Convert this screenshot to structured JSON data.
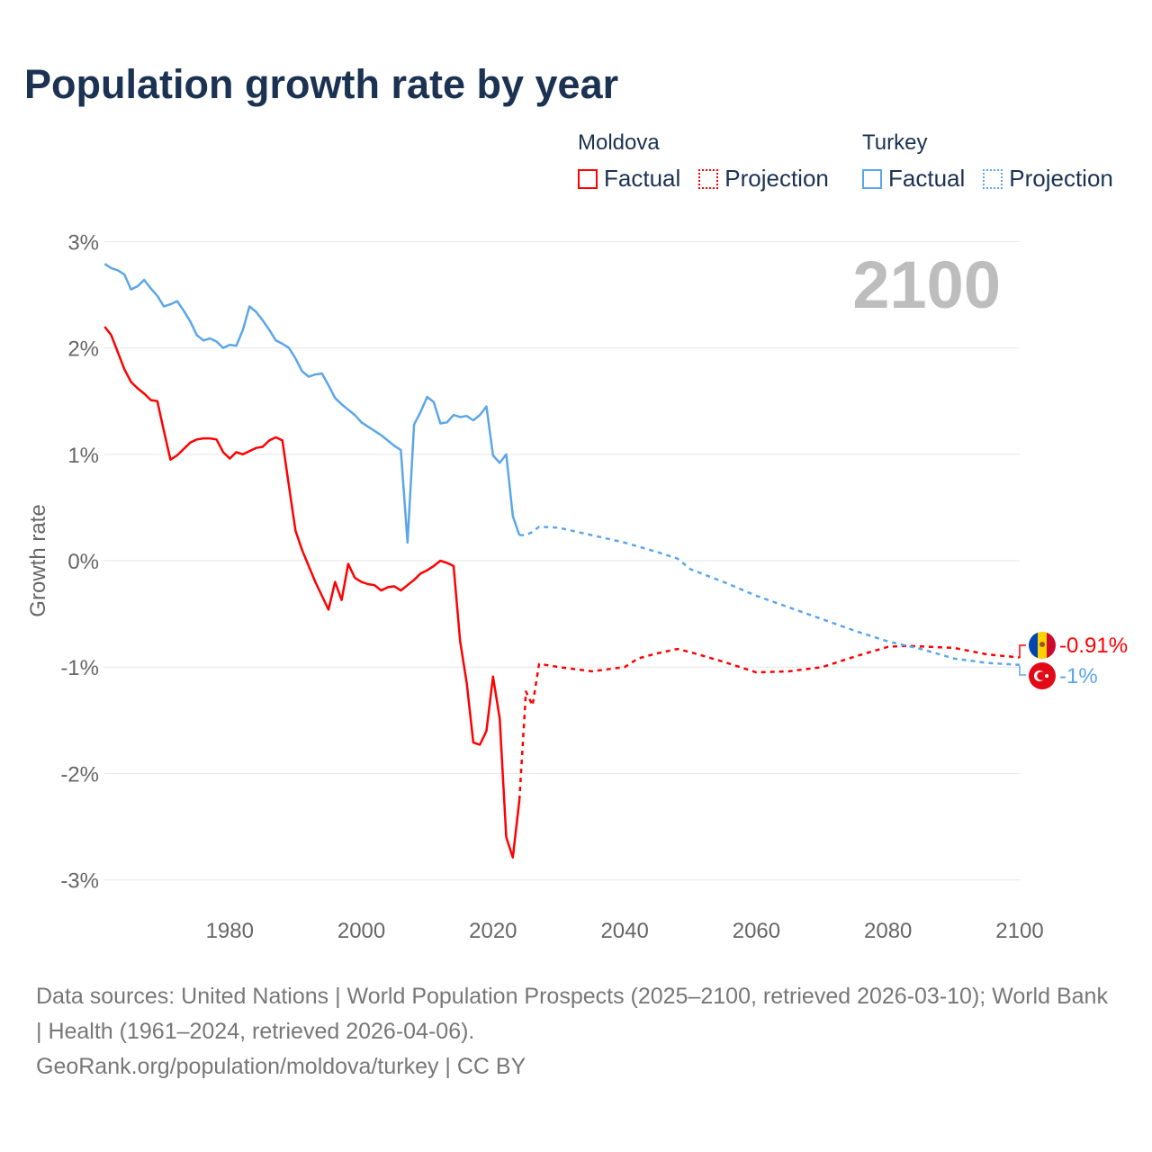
{
  "title": "Population growth rate by year",
  "legend": {
    "groups": [
      {
        "country": "Moldova",
        "factual": "Factual",
        "projection": "Projection",
        "color": "#ff0000"
      },
      {
        "country": "Turkey",
        "factual": "Factual",
        "projection": "Projection",
        "color": "#5ba6e9"
      }
    ]
  },
  "year_label": "2100",
  "end_labels": {
    "moldova": "-0.91%",
    "turkey": "-1%",
    "moldova_flag": "moldova-flag-icon",
    "turkey_flag": "turkey-flag-icon"
  },
  "footer": {
    "line1": "Data sources: United Nations | World Population Prospects (2025–2100, retrieved 2026-03-10); World Bank | Health (1961–2024, retrieved 2026-04-06).",
    "line2": "GeoRank.org/population/moldova/turkey | CC BY"
  },
  "chart_data": {
    "type": "line",
    "title": "Population growth rate by year",
    "xlabel": "",
    "ylabel": "Growth rate",
    "xlim": [
      1961,
      2100
    ],
    "ylim": [
      -3.3,
      3.1
    ],
    "x_ticks": [
      1980,
      2000,
      2020,
      2040,
      2060,
      2080,
      2100
    ],
    "y_ticks": [
      {
        "v": 3,
        "label": "3%"
      },
      {
        "v": 2,
        "label": "2%"
      },
      {
        "v": 1,
        "label": "1%"
      },
      {
        "v": 0,
        "label": "0%"
      },
      {
        "v": -1,
        "label": "-1%"
      },
      {
        "v": -2,
        "label": "-2%"
      },
      {
        "v": -3,
        "label": "-3%"
      }
    ],
    "grid": true,
    "legend_position": "top-right",
    "series": [
      {
        "name": "Moldova",
        "kind": "Factual",
        "color": "#ff0000",
        "x": [
          1961,
          1962,
          1963,
          1964,
          1965,
          1966,
          1967,
          1968,
          1969,
          1970,
          1971,
          1972,
          1973,
          1974,
          1975,
          1976,
          1977,
          1978,
          1979,
          1980,
          1981,
          1982,
          1983,
          1984,
          1985,
          1986,
          1987,
          1988,
          1989,
          1990,
          1991,
          1992,
          1993,
          1994,
          1995,
          1996,
          1997,
          1998,
          1999,
          2000,
          2001,
          2002,
          2003,
          2004,
          2005,
          2006,
          2007,
          2008,
          2009,
          2010,
          2011,
          2012,
          2013,
          2014,
          2015,
          2016,
          2017,
          2018,
          2019,
          2020,
          2021,
          2022,
          2023,
          2024
        ],
        "y": [
          2.2,
          2.12,
          1.96,
          1.8,
          1.68,
          1.62,
          1.57,
          1.51,
          1.5,
          1.22,
          0.95,
          0.99,
          1.05,
          1.11,
          1.14,
          1.15,
          1.15,
          1.14,
          1.02,
          0.96,
          1.02,
          1.0,
          1.03,
          1.06,
          1.07,
          1.13,
          1.16,
          1.13,
          0.7,
          0.28,
          0.1,
          -0.05,
          -0.2,
          -0.33,
          -0.46,
          -0.2,
          -0.37,
          -0.03,
          -0.16,
          -0.2,
          -0.22,
          -0.23,
          -0.28,
          -0.25,
          -0.24,
          -0.28,
          -0.23,
          -0.18,
          -0.12,
          -0.09,
          -0.05,
          0.0,
          -0.02,
          -0.05,
          -0.76,
          -1.15,
          -1.71,
          -1.73,
          -1.6,
          -1.09,
          -1.48,
          -2.6,
          -2.79,
          -2.25
        ]
      },
      {
        "name": "Moldova",
        "kind": "Projection",
        "color": "#ff0000",
        "x": [
          2024,
          2025,
          2026,
          2027,
          2028,
          2030,
          2035,
          2040,
          2042,
          2045,
          2048,
          2050,
          2055,
          2060,
          2065,
          2070,
          2075,
          2080,
          2083,
          2090,
          2095,
          2100
        ],
        "y": [
          -2.25,
          -1.23,
          -1.36,
          -0.97,
          -0.98,
          -1.0,
          -1.04,
          -1.0,
          -0.92,
          -0.87,
          -0.83,
          -0.86,
          -0.95,
          -1.05,
          -1.04,
          -1.0,
          -0.9,
          -0.81,
          -0.8,
          -0.82,
          -0.88,
          -0.91
        ]
      },
      {
        "name": "Turkey",
        "kind": "Factual",
        "color": "#5ba6e9",
        "x": [
          1961,
          1962,
          1963,
          1964,
          1965,
          1966,
          1967,
          1968,
          1969,
          1970,
          1971,
          1972,
          1973,
          1974,
          1975,
          1976,
          1977,
          1978,
          1979,
          1980,
          1981,
          1982,
          1983,
          1984,
          1985,
          1986,
          1987,
          1988,
          1989,
          1990,
          1991,
          1992,
          1993,
          1994,
          1995,
          1996,
          1997,
          1998,
          1999,
          2000,
          2001,
          2002,
          2003,
          2004,
          2005,
          2006,
          2007,
          2008,
          2009,
          2010,
          2011,
          2012,
          2013,
          2014,
          2015,
          2016,
          2017,
          2018,
          2019,
          2020,
          2021,
          2022,
          2023,
          2024
        ],
        "y": [
          2.79,
          2.75,
          2.73,
          2.69,
          2.55,
          2.58,
          2.64,
          2.56,
          2.49,
          2.39,
          2.41,
          2.44,
          2.35,
          2.25,
          2.12,
          2.07,
          2.09,
          2.06,
          2.0,
          2.03,
          2.02,
          2.17,
          2.39,
          2.34,
          2.26,
          2.17,
          2.07,
          2.04,
          2.0,
          1.9,
          1.78,
          1.73,
          1.75,
          1.76,
          1.65,
          1.53,
          1.47,
          1.42,
          1.37,
          1.3,
          1.26,
          1.22,
          1.18,
          1.13,
          1.08,
          1.04,
          0.17,
          1.28,
          1.4,
          1.54,
          1.49,
          1.29,
          1.3,
          1.37,
          1.35,
          1.36,
          1.32,
          1.37,
          1.45,
          0.99,
          0.92,
          1.0,
          0.42,
          0.24
        ]
      },
      {
        "name": "Turkey",
        "kind": "Projection",
        "color": "#5ba6e9",
        "x": [
          2024,
          2025,
          2026,
          2027,
          2030,
          2035,
          2040,
          2045,
          2048,
          2050,
          2055,
          2060,
          2065,
          2070,
          2075,
          2080,
          2085,
          2090,
          2095,
          2100
        ],
        "y": [
          0.24,
          0.24,
          0.27,
          0.32,
          0.31,
          0.24,
          0.17,
          0.08,
          0.02,
          -0.08,
          -0.2,
          -0.33,
          -0.44,
          -0.55,
          -0.66,
          -0.76,
          -0.83,
          -0.92,
          -0.96,
          -0.98
        ]
      }
    ]
  }
}
